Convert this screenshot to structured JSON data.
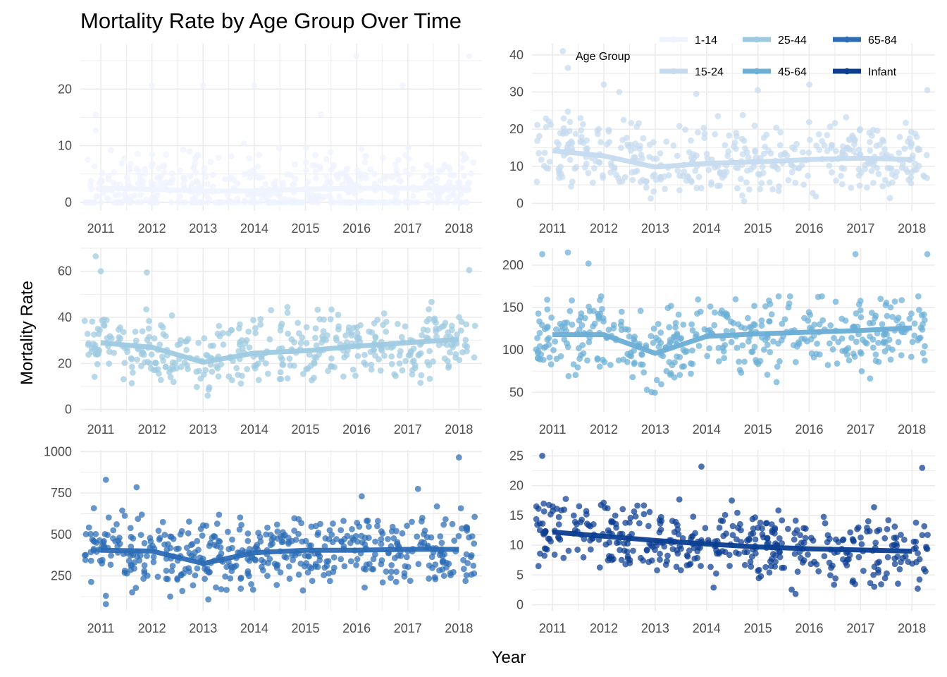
{
  "title": "Mortality Rate by Age Group Over Time",
  "xlabel": "Year",
  "ylabel": "Mortality Rate",
  "legend": {
    "title": "Age Group",
    "placement": "top-right",
    "items": [
      {
        "label": "1-14",
        "color": "#eff3ff"
      },
      {
        "label": "25-44",
        "color": "#9ecae1"
      },
      {
        "label": "65-84",
        "color": "#2b6cb5"
      },
      {
        "label": "15-24",
        "color": "#c6dbef"
      },
      {
        "label": "45-64",
        "color": "#6baed6"
      },
      {
        "label": "Infant",
        "color": "#0b3d91"
      }
    ]
  },
  "chart_data": [
    {
      "type": "scatter+line",
      "series": "1-14",
      "color": "#eff3ff",
      "xlim": [
        2010.6,
        2018.45
      ],
      "x_ticks": [
        2011,
        2012,
        2013,
        2014,
        2015,
        2016,
        2017,
        2018
      ],
      "ylim": [
        -1.5,
        28
      ],
      "y_ticks": [
        0,
        10,
        20
      ],
      "trend": {
        "x": [
          2011,
          2012,
          2013,
          2014,
          2015,
          2016,
          2017,
          2018
        ],
        "y": [
          2.5,
          2.3,
          2.0,
          2.0,
          2.3,
          2.5,
          2.5,
          2.6
        ]
      },
      "points": {
        "n": 480,
        "min": 0,
        "max": 26,
        "outliers": [
          [
            2010.9,
            15.5
          ],
          [
            2010.9,
            12.7
          ],
          [
            2011.2,
            9.2
          ],
          [
            2012.0,
            20.6
          ],
          [
            2012.9,
            8.3
          ],
          [
            2013.0,
            20.6
          ],
          [
            2013.8,
            10.4
          ],
          [
            2014.0,
            20.6
          ],
          [
            2015.3,
            15.5
          ],
          [
            2016.0,
            25.8
          ],
          [
            2016.9,
            20.6
          ],
          [
            2018.2,
            25.8
          ]
        ]
      }
    },
    {
      "type": "scatter+line",
      "series": "15-24",
      "color": "#c6dbef",
      "xlim": [
        2010.6,
        2018.45
      ],
      "x_ticks": [
        2011,
        2012,
        2013,
        2014,
        2015,
        2016,
        2017,
        2018
      ],
      "ylim": [
        -2,
        43
      ],
      "y_ticks": [
        0,
        10,
        20,
        30,
        40
      ],
      "trend": {
        "x": [
          2011,
          2012,
          2013,
          2014,
          2015,
          2016,
          2017,
          2018
        ],
        "y": [
          14.2,
          12.8,
          9.8,
          10.8,
          11.2,
          11.8,
          12.2,
          11.8
        ]
      },
      "points": {
        "n": 420,
        "min": 0,
        "max": 41,
        "outliers": [
          [
            2011.2,
            41
          ],
          [
            2011.3,
            36.5
          ],
          [
            2012.0,
            32
          ],
          [
            2012.3,
            30
          ],
          [
            2013.8,
            29.5
          ],
          [
            2015.0,
            30.5
          ],
          [
            2016.0,
            32
          ],
          [
            2018.3,
            30.5
          ]
        ]
      }
    },
    {
      "type": "scatter+line",
      "series": "25-44",
      "color": "#9ecae1",
      "xlim": [
        2010.6,
        2018.45
      ],
      "x_ticks": [
        2011,
        2012,
        2013,
        2014,
        2015,
        2016,
        2017,
        2018
      ],
      "ylim": [
        -1,
        70
      ],
      "y_ticks": [
        0,
        20,
        40,
        60
      ],
      "trend": {
        "x": [
          2011,
          2012,
          2013,
          2014,
          2015,
          2016,
          2017,
          2018
        ],
        "y": [
          29,
          27,
          20.5,
          24.5,
          25.5,
          27.5,
          29,
          30.5
        ]
      },
      "points": {
        "n": 420,
        "min": 2,
        "max": 66,
        "outliers": [
          [
            2010.9,
            66.5
          ],
          [
            2011.0,
            60
          ],
          [
            2011.9,
            59.5
          ],
          [
            2018.2,
            60.5
          ]
        ]
      }
    },
    {
      "type": "scatter+line",
      "series": "45-64",
      "color": "#6baed6",
      "xlim": [
        2010.6,
        2018.45
      ],
      "x_ticks": [
        2011,
        2012,
        2013,
        2014,
        2015,
        2016,
        2017,
        2018
      ],
      "ylim": [
        27,
        220
      ],
      "y_ticks": [
        50,
        100,
        150,
        200
      ],
      "trend": {
        "x": [
          2011,
          2012,
          2013,
          2014,
          2015,
          2016,
          2017,
          2018
        ],
        "y": [
          118,
          118,
          96,
          116,
          119,
          121,
          123,
          126
        ]
      },
      "points": {
        "n": 420,
        "min": 30,
        "max": 215,
        "outliers": [
          [
            2010.8,
            213
          ],
          [
            2011.3,
            215
          ],
          [
            2011.7,
            202
          ],
          [
            2016.9,
            213
          ],
          [
            2018.3,
            213
          ]
        ]
      }
    },
    {
      "type": "scatter+line",
      "series": "65-84",
      "color": "#2b6cb5",
      "xlim": [
        2010.6,
        2018.45
      ],
      "x_ticks": [
        2011,
        2012,
        2013,
        2014,
        2015,
        2016,
        2017,
        2018
      ],
      "ylim": [
        40,
        1010
      ],
      "y_ticks": [
        250,
        500,
        750,
        1000
      ],
      "trend": {
        "x": [
          2011,
          2012,
          2013,
          2014,
          2015,
          2016,
          2017,
          2018
        ],
        "y": [
          405,
          400,
          325,
          390,
          405,
          405,
          410,
          410
        ]
      },
      "points": {
        "n": 480,
        "min": 80,
        "max": 965,
        "outliers": [
          [
            2011.1,
            830
          ],
          [
            2011.7,
            785
          ],
          [
            2013.0,
            555
          ],
          [
            2016.1,
            730
          ],
          [
            2017.2,
            775
          ],
          [
            2018.0,
            965
          ],
          [
            2011.1,
            80
          ],
          [
            2011.1,
            130
          ]
        ]
      }
    },
    {
      "type": "scatter+line",
      "series": "Infant",
      "color": "#0b3d91",
      "xlim": [
        2010.6,
        2018.45
      ],
      "x_ticks": [
        2011,
        2012,
        2013,
        2014,
        2015,
        2016,
        2017,
        2018
      ],
      "ylim": [
        -1,
        26
      ],
      "y_ticks": [
        0,
        5,
        10,
        15,
        20,
        25
      ],
      "trend": {
        "x": [
          2011,
          2012,
          2013,
          2014,
          2015,
          2016,
          2017,
          2018
        ],
        "y": [
          12.2,
          11.5,
          10.8,
          10.2,
          9.7,
          9.4,
          9.2,
          9.0
        ]
      },
      "points": {
        "n": 420,
        "min": 0,
        "max": 25,
        "outliers": [
          [
            2010.8,
            25
          ],
          [
            2013.9,
            23.2
          ],
          [
            2018.2,
            23
          ]
        ]
      }
    }
  ]
}
